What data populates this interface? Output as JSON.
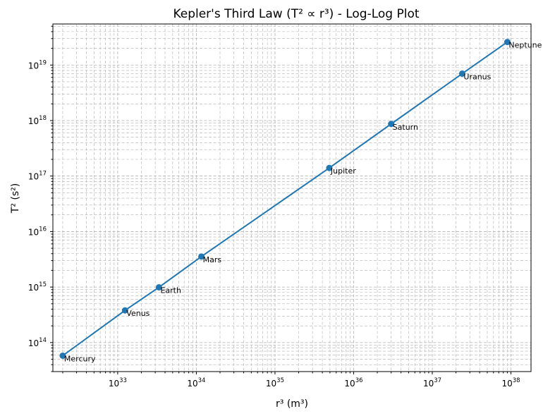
{
  "chart_data": {
    "type": "line",
    "title": "Kepler's Third Law (T² ∝ r³) - Log-Log Plot",
    "xlabel": "r³ (m³)",
    "ylabel": "T² (s²)",
    "xscale": "log",
    "yscale": "log",
    "xlim": [
      1.5e+32,
      1.8e+38
    ],
    "ylim": [
      30000000000000.0,
      5.5e+19
    ],
    "grid": "on (major and minor, dashed)",
    "x_ticks": [
      {
        "base": "10",
        "exp": "33",
        "value": 1e+33
      },
      {
        "base": "10",
        "exp": "34",
        "value": 1e+34
      },
      {
        "base": "10",
        "exp": "35",
        "value": 1e+35
      },
      {
        "base": "10",
        "exp": "36",
        "value": 1e+36
      },
      {
        "base": "10",
        "exp": "37",
        "value": 1e+37
      },
      {
        "base": "10",
        "exp": "38",
        "value": 1e+38
      }
    ],
    "y_ticks": [
      {
        "base": "10",
        "exp": "14",
        "value": 100000000000000.0
      },
      {
        "base": "10",
        "exp": "15",
        "value": 1000000000000000.0
      },
      {
        "base": "10",
        "exp": "16",
        "value": 1e+16
      },
      {
        "base": "10",
        "exp": "17",
        "value": 1e+17
      },
      {
        "base": "10",
        "exp": "18",
        "value": 1e+18
      },
      {
        "base": "10",
        "exp": "19",
        "value": 1e+19
      }
    ],
    "points": [
      {
        "label": "Mercury",
        "x": 2e+32,
        "y": 58000000000000.0
      },
      {
        "label": "Venus",
        "x": 1.24e+33,
        "y": 380000000000000.0
      },
      {
        "label": "Earth",
        "x": 3.35e+33,
        "y": 990000000000000.0
      },
      {
        "label": "Mars",
        "x": 1.16e+34,
        "y": 3550000000000000.0
      },
      {
        "label": "Jupiter",
        "x": 4.9e+35,
        "y": 1.4e+17
      },
      {
        "label": "Saturn",
        "x": 3e+36,
        "y": 8.7e+17
      },
      {
        "label": "Uranus",
        "x": 2.4e+37,
        "y": 7e+18
      },
      {
        "label": "Neptune",
        "x": 9e+37,
        "y": 2.6e+19
      }
    ],
    "color": "#1f77b4"
  }
}
